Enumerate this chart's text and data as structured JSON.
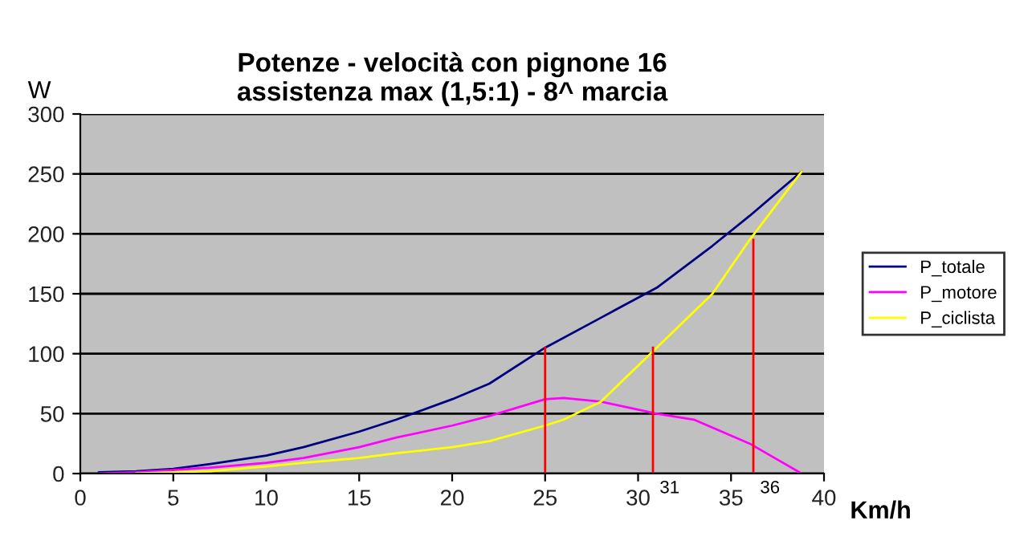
{
  "chart_data": {
    "type": "line",
    "title": "Potenze - velocità con pignone 16\nassistenza max (1,5:1) - 8^ marcia",
    "xlabel": "Km/h",
    "ylabel": "W",
    "xlim": [
      0,
      40
    ],
    "xticks": [
      0,
      5,
      10,
      15,
      20,
      25,
      30,
      35,
      40
    ],
    "ylim": [
      0,
      300
    ],
    "yticks": [
      0,
      50,
      100,
      150,
      200,
      250,
      300
    ],
    "grid": "y",
    "legend": "right",
    "marker": "none",
    "line_style": "solid",
    "series": [
      {
        "name": "P_totale",
        "color": "#000080",
        "x": [
          1,
          3,
          5,
          7,
          10,
          12,
          15,
          17,
          20,
          22,
          25,
          28,
          31,
          34,
          36,
          38.8
        ],
        "values": [
          1,
          2,
          4,
          8,
          15,
          22,
          35,
          45,
          62,
          75,
          105,
          130,
          155,
          190,
          215,
          252
        ]
      },
      {
        "name": "P_motore",
        "color": "#ff00ff",
        "x": [
          1,
          3,
          5,
          7,
          10,
          12,
          15,
          17,
          20,
          22,
          25,
          26,
          28,
          31,
          33,
          36,
          38.8
        ],
        "values": [
          0,
          1,
          3,
          5,
          9,
          13,
          22,
          30,
          40,
          48,
          62,
          63,
          60,
          50,
          45,
          25,
          0
        ]
      },
      {
        "name": "P_ciclista",
        "color": "#ffff00",
        "x": [
          3,
          5,
          7,
          10,
          12,
          15,
          17,
          20,
          22,
          25,
          26,
          28,
          31,
          34,
          36,
          38.8
        ],
        "values": [
          0,
          1,
          2,
          6,
          9,
          13,
          17,
          22,
          27,
          40,
          45,
          60,
          105,
          150,
          195,
          252
        ]
      },
      {
        "color": "#ff0000",
        "x": [
          25,
          25
        ],
        "values": [
          0,
          105
        ]
      },
      {
        "color": "#ff0000",
        "x": [
          30.8,
          30.8
        ],
        "values": [
          0,
          105
        ]
      },
      {
        "color": "#ff0000",
        "x": [
          36.2,
          36.2
        ],
        "values": [
          0,
          195
        ]
      }
    ],
    "annotations": [
      {
        "text": "31",
        "x": 30.8,
        "y": 0
      },
      {
        "text": "36",
        "x": 36.2,
        "y": 0
      }
    ]
  }
}
